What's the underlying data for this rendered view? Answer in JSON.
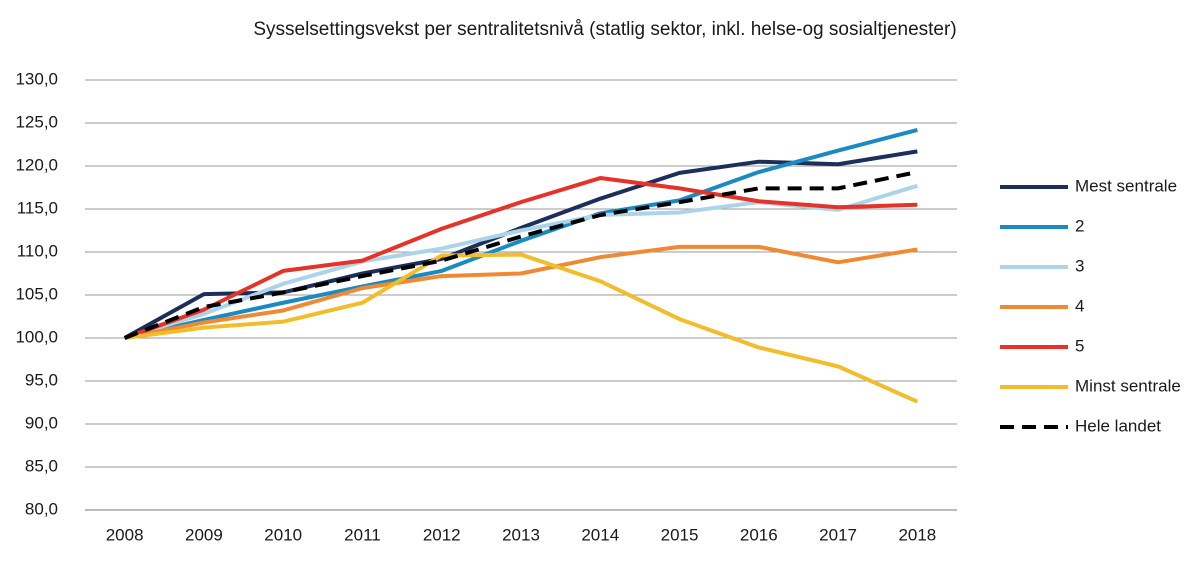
{
  "chart_data": {
    "type": "line",
    "title": "Sysselsettingsvekst per sentralitetsnivå (statlig sektor, inkl. helse-og sosialtjenester)",
    "categories": [
      "2008",
      "2009",
      "2010",
      "2011",
      "2012",
      "2013",
      "2014",
      "2015",
      "2016",
      "2017",
      "2018"
    ],
    "ylim": [
      80,
      130
    ],
    "yticks": [
      {
        "value": 80,
        "label": "80,0"
      },
      {
        "value": 85,
        "label": "85,0"
      },
      {
        "value": 90,
        "label": "90,0"
      },
      {
        "value": 95,
        "label": "95,0"
      },
      {
        "value": 100,
        "label": "100,0"
      },
      {
        "value": 105,
        "label": "105,0"
      },
      {
        "value": 110,
        "label": "110,0"
      },
      {
        "value": 115,
        "label": "115,0"
      },
      {
        "value": 120,
        "label": "120,0"
      },
      {
        "value": 125,
        "label": "125,0"
      },
      {
        "value": 130,
        "label": "130,0"
      }
    ],
    "grid": true,
    "legend": "right",
    "series": [
      {
        "name": "Mest sentrale",
        "color": "#1c2f5a",
        "values": [
          100,
          105.1,
          105.3,
          107.5,
          109.2,
          112.8,
          116.2,
          119.2,
          120.5,
          120.2,
          121.7
        ]
      },
      {
        "name": "2",
        "color": "#1a8ac3",
        "values": [
          100,
          102.1,
          104.1,
          106.0,
          107.8,
          111.3,
          114.5,
          116.0,
          119.3,
          121.8,
          124.2
        ]
      },
      {
        "name": "3",
        "color": "#acd4e8",
        "values": [
          100,
          102.8,
          106.3,
          108.9,
          110.4,
          112.5,
          114.3,
          114.6,
          115.8,
          114.9,
          117.7
        ]
      },
      {
        "name": "4",
        "color": "#f08a32",
        "values": [
          100,
          101.8,
          103.2,
          105.8,
          107.2,
          107.5,
          109.4,
          110.6,
          110.6,
          108.8,
          110.3
        ]
      },
      {
        "name": "5",
        "color": "#e5332a",
        "values": [
          100,
          103.3,
          107.8,
          109.0,
          112.7,
          115.8,
          118.6,
          117.4,
          115.9,
          115.2,
          115.5
        ]
      },
      {
        "name": "Minst sentrale",
        "color": "#f2bd2b",
        "values": [
          100,
          101.2,
          101.9,
          104.1,
          109.6,
          109.7,
          106.6,
          102.2,
          98.9,
          96.7,
          92.6
        ]
      },
      {
        "name": "Hele landet",
        "color": "#000000",
        "dashed": true,
        "values": [
          100,
          103.6,
          105.3,
          107.2,
          109.0,
          111.8,
          114.3,
          115.8,
          117.4,
          117.4,
          119.3
        ]
      }
    ]
  }
}
